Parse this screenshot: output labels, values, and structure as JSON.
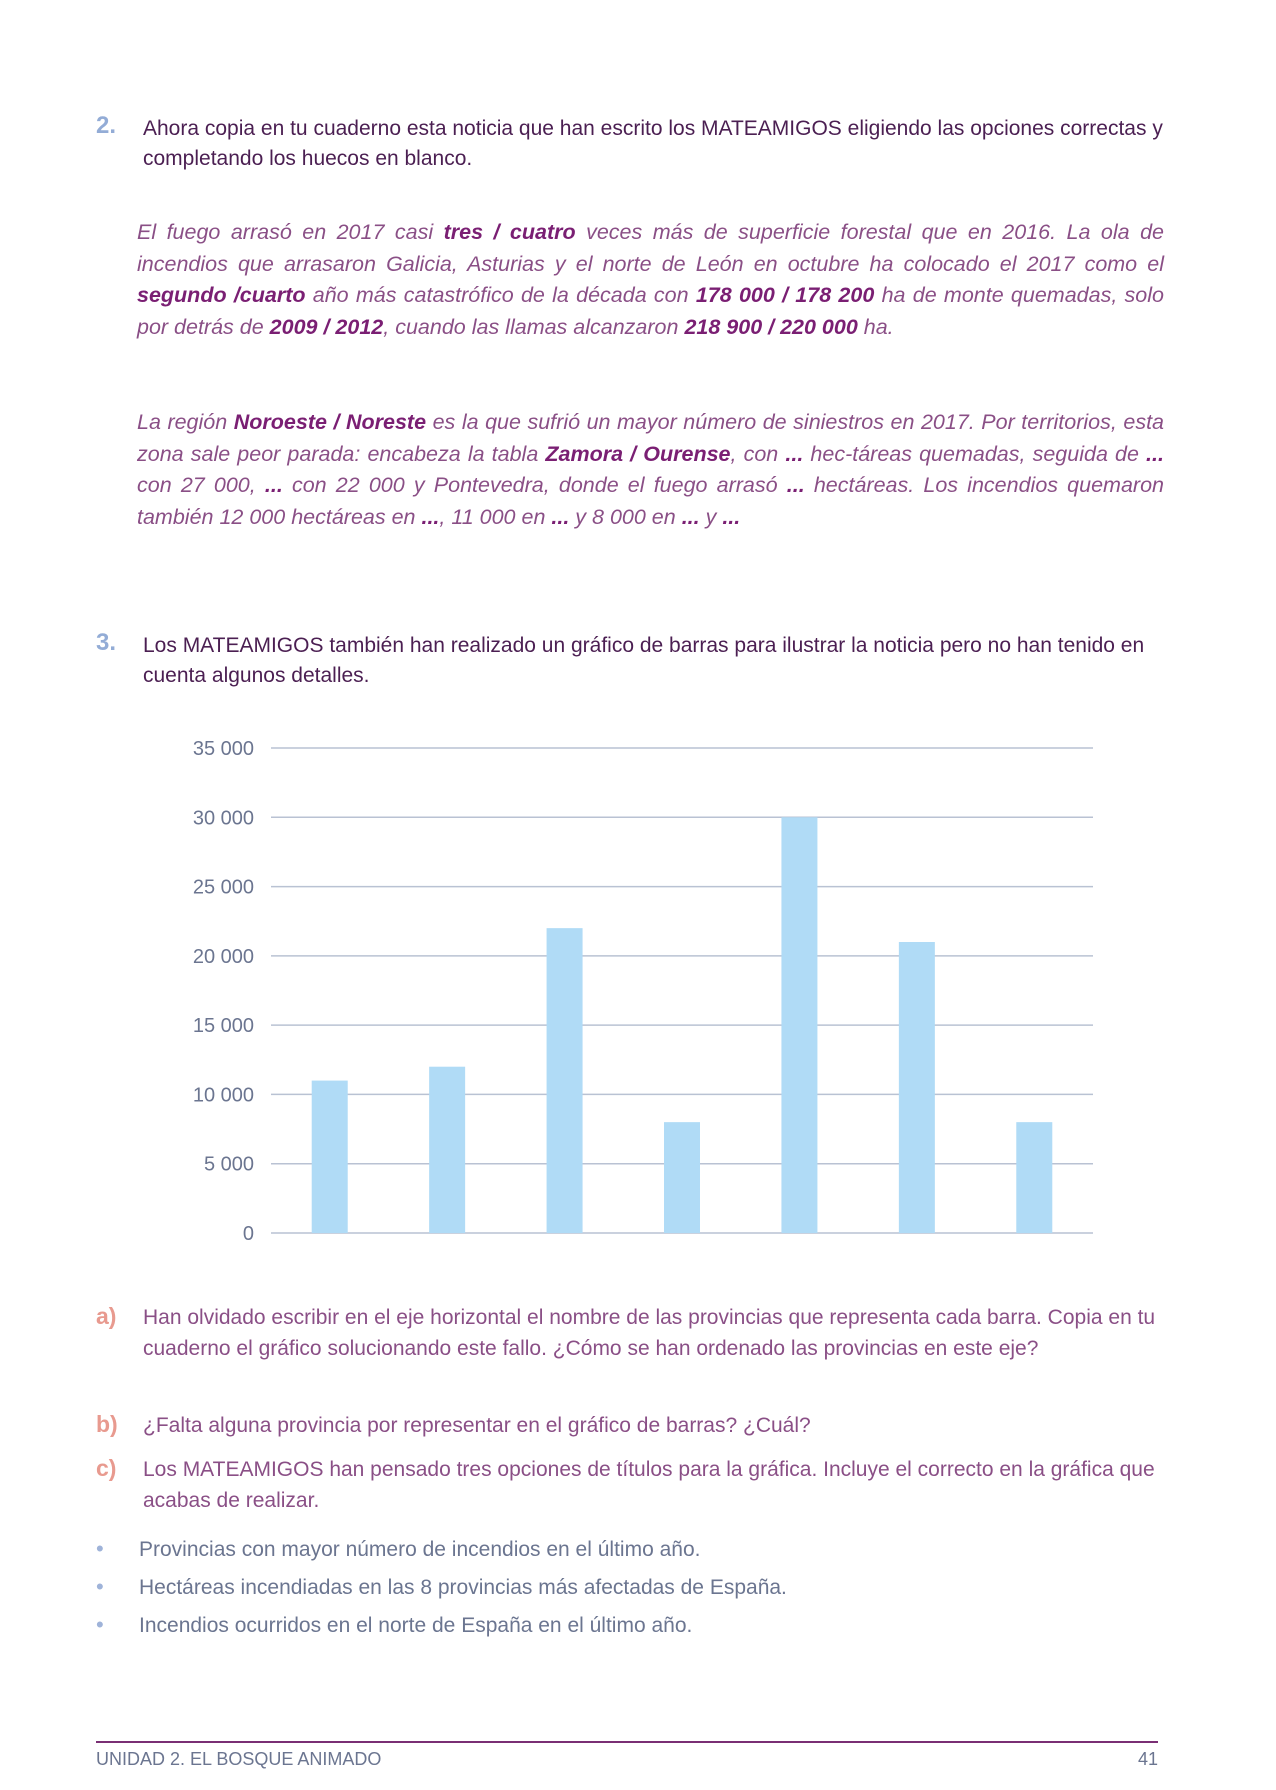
{
  "q2": {
    "number": "2.",
    "text": "Ahora copia en tu cuaderno esta noticia que han escrito los MATEAMIGOS eligiendo las opciones correctas y completando los huecos en blanco.",
    "paragraph1": [
      {
        "t": "El fuego arrasó en 2017 casi "
      },
      {
        "t": "tres / cuatro",
        "b": true
      },
      {
        "t": " veces más de superficie forestal que en 2016. La ola de incendios que arrasaron Galicia, Asturias y el norte de León en octubre ha colocado el 2017 como el "
      },
      {
        "t": "segundo /cuarto",
        "b": true
      },
      {
        "t": " año más catastrófico de la década con "
      },
      {
        "t": "178 000 / 178 200",
        "b": true
      },
      {
        "t": " ha de monte quemadas, solo por detrás de "
      },
      {
        "t": "2009 / 2012",
        "b": true
      },
      {
        "t": ", cuando las llamas alcanzaron "
      },
      {
        "t": "218 900 / 220 000",
        "b": true
      },
      {
        "t": " ha."
      }
    ],
    "paragraph2": [
      {
        "t": "La región "
      },
      {
        "t": "Noroeste / Noreste",
        "b": true
      },
      {
        "t": " es la que sufrió un mayor número de siniestros en 2017. Por territorios, esta zona sale peor parada: encabeza la tabla "
      },
      {
        "t": "Zamora / Ourense",
        "b": true
      },
      {
        "t": ", con "
      },
      {
        "t": "...",
        "b": true
      },
      {
        "t": " hec-táreas quemadas, seguida de "
      },
      {
        "t": "...",
        "b": true
      },
      {
        "t": " con 27 000, "
      },
      {
        "t": "...",
        "b": true
      },
      {
        "t": " con 22 000 y Pontevedra, donde el fuego arrasó "
      },
      {
        "t": "...",
        "b": true
      },
      {
        "t": " hectáreas. Los incendios quemaron también 12 000 hectáreas en "
      },
      {
        "t": "...",
        "b": true
      },
      {
        "t": ", 11 000 en "
      },
      {
        "t": "...",
        "b": true
      },
      {
        "t": " y 8 000 en "
      },
      {
        "t": "...",
        "b": true
      },
      {
        "t": " y "
      },
      {
        "t": "...",
        "b": true
      }
    ]
  },
  "q3": {
    "number": "3.",
    "text": "Los MATEAMIGOS también han realizado un gráfico de barras para ilustrar la noticia pero no han tenido en cuenta algunos detalles."
  },
  "chart_data": {
    "type": "bar",
    "categories": [
      "",
      "",
      "",
      "",
      "",
      "",
      ""
    ],
    "values": [
      11000,
      12000,
      22000,
      8000,
      30000,
      21000,
      8000
    ],
    "title": "",
    "xlabel": "",
    "ylabel": "",
    "ylim": [
      0,
      35000
    ],
    "yticks": [
      "0",
      "5 000",
      "10 000",
      "15 000",
      "20 000",
      "25 000",
      "30 000",
      "35 000"
    ],
    "grid": true,
    "bar_color": "#b0dbf6",
    "grid_color": "#b9c2d3"
  },
  "subquestions": [
    {
      "label": "a)",
      "text": "Han olvidado escribir en el eje horizontal el nombre de las provincias que representa cada barra. Copia en tu cuaderno el gráfico solucionando este fallo. ¿Cómo se han ordenado las provincias en este eje?"
    },
    {
      "label": "b)",
      "text": "¿Falta alguna provincia por representar en el gráfico de barras? ¿Cuál?"
    },
    {
      "label": "c)",
      "text": "Los MATEAMIGOS han pensado tres opciones de títulos para la gráfica. Incluye el correcto en la gráfica que acabas de realizar."
    }
  ],
  "options": [
    "Provincias con mayor número de incendios en el último año.",
    "Hectáreas incendiadas en las 8 provincias más afectadas de España.",
    "Incendios ocurridos en el norte de España en el último año."
  ],
  "bullet": "•",
  "footer": {
    "unit": "UNIDAD 2. EL BOSQUE ANIMADO",
    "page": "41"
  }
}
